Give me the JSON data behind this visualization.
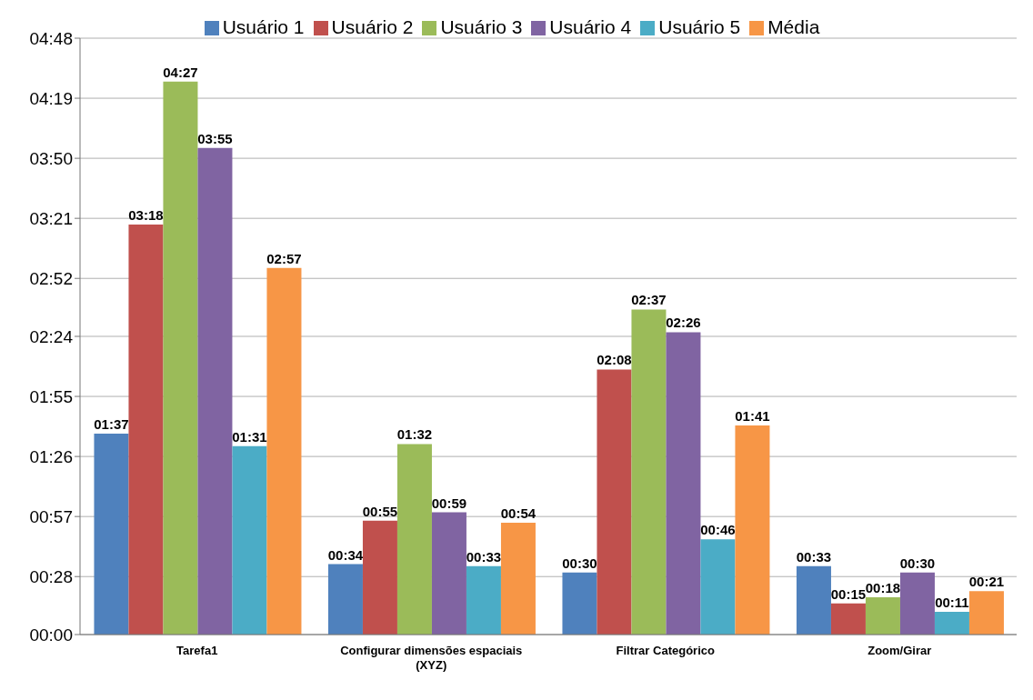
{
  "chart_data": {
    "type": "bar",
    "categories": [
      "Tarefa1",
      "Configurar dimensões espaciais (XYZ)",
      "Filtrar Categórico",
      "Zoom/Girar"
    ],
    "series": [
      {
        "name": "Usuário 1",
        "color": "#4f81bd",
        "values": [
          97,
          34,
          30,
          33
        ],
        "value_labels": [
          "01:37",
          "00:34",
          "00:30",
          "00:33"
        ]
      },
      {
        "name": "Usuário 2",
        "color": "#c0504d",
        "values": [
          198,
          55,
          128,
          15
        ],
        "value_labels": [
          "03:18",
          "00:55",
          "02:08",
          "00:15"
        ]
      },
      {
        "name": "Usuário 3",
        "color": "#9bbb59",
        "values": [
          267,
          92,
          157,
          18
        ],
        "value_labels": [
          "04:27",
          "01:32",
          "02:37",
          "00:18"
        ]
      },
      {
        "name": "Usuário 4",
        "color": "#8064a2",
        "values": [
          235,
          59,
          146,
          30
        ],
        "value_labels": [
          "03:55",
          "00:59",
          "02:26",
          "00:30"
        ]
      },
      {
        "name": "Usuário 5",
        "color": "#4bacc6",
        "values": [
          91,
          33,
          46,
          11
        ],
        "value_labels": [
          "01:31",
          "00:33",
          "00:46",
          "00:11"
        ]
      },
      {
        "name": "Média",
        "color": "#f79646",
        "values": [
          177,
          54,
          101,
          21
        ],
        "value_labels": [
          "02:57",
          "00:54",
          "01:41",
          "00:21"
        ]
      }
    ],
    "ylim": [
      0,
      288
    ],
    "yticks": [
      {
        "value": 0,
        "label": "00:00"
      },
      {
        "value": 28,
        "label": "00:28"
      },
      {
        "value": 57,
        "label": "00:57"
      },
      {
        "value": 86,
        "label": "01:26"
      },
      {
        "value": 115,
        "label": "01:55"
      },
      {
        "value": 144,
        "label": "02:24"
      },
      {
        "value": 172,
        "label": "02:52"
      },
      {
        "value": 201,
        "label": "03:21"
      },
      {
        "value": 230,
        "label": "03:50"
      },
      {
        "value": 259,
        "label": "04:19"
      },
      {
        "value": 288,
        "label": "04:48"
      }
    ],
    "grid": "y",
    "legend": "top"
  }
}
